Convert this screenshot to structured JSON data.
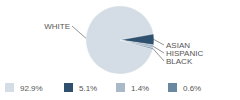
{
  "chart_data": {
    "type": "pie",
    "categories": [
      "WHITE",
      "ASIAN",
      "HISPANIC",
      "BLACK"
    ],
    "values": [
      92.9,
      5.1,
      1.4,
      0.6
    ],
    "value_labels": [
      "92.9%",
      "5.1%",
      "1.4%",
      "0.6%"
    ],
    "colors": [
      "#d4dde6",
      "#2f506e",
      "#a9b9c8",
      "#6b88a1"
    ],
    "legend": "bottom"
  }
}
